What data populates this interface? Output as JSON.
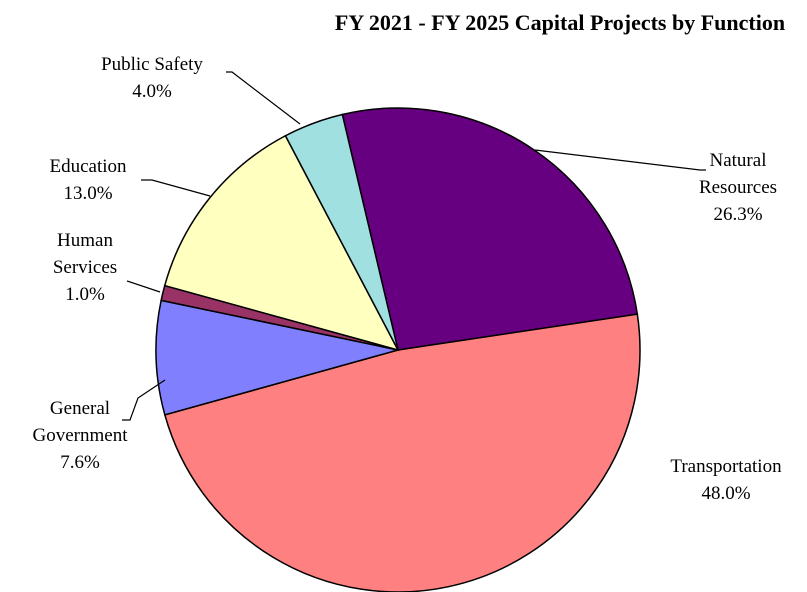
{
  "chart_data": {
    "type": "pie",
    "title": "FY 2021 - FY 2025 Capital Projects by Function",
    "categories": [
      "Natural Resources",
      "Transportation",
      "General Government",
      "Human Services",
      "Education",
      "Public Safety"
    ],
    "values": [
      26.3,
      48.0,
      7.6,
      1.0,
      13.0,
      4.0
    ],
    "value_labels": [
      "26.3%",
      "48.0%",
      "7.6%",
      "1.0%",
      "13.0%",
      "4.0%"
    ],
    "colors": [
      "#660080",
      "#ff8080",
      "#8080ff",
      "#993366",
      "#ffffc0",
      "#a0e0e0"
    ]
  }
}
